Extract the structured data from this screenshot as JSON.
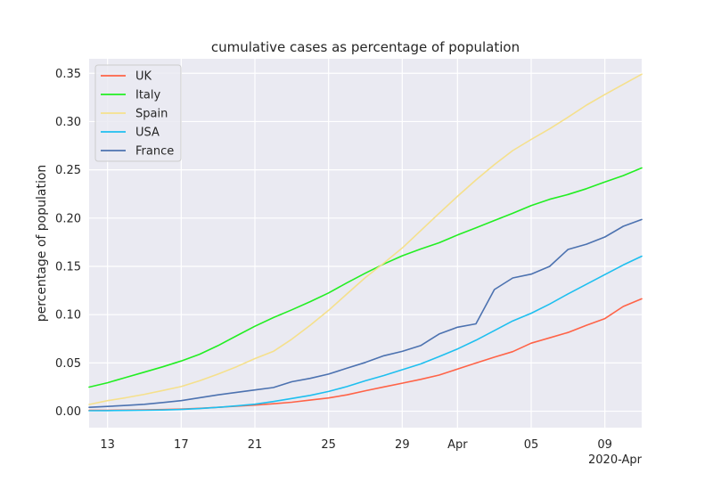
{
  "chart_data": {
    "type": "line",
    "title": "cumulative cases as percentage of population",
    "xlabel": "",
    "ylabel": "percentage of population",
    "x_offset_label": "2020-Apr",
    "x_ticks": [
      "13",
      "17",
      "21",
      "25",
      "29",
      "Apr",
      "05",
      "09"
    ],
    "x_tick_dates": [
      "2020-03-13",
      "2020-03-17",
      "2020-03-21",
      "2020-03-25",
      "2020-03-29",
      "2020-04-01",
      "2020-04-05",
      "2020-04-09"
    ],
    "xlim": [
      "2020-03-12",
      "2020-04-11"
    ],
    "ylim": [
      -0.017,
      0.365
    ],
    "y_ticks": [
      "0.00",
      "0.05",
      "0.10",
      "0.15",
      "0.20",
      "0.25",
      "0.30",
      "0.35"
    ],
    "y_tick_values": [
      0.0,
      0.05,
      0.1,
      0.15,
      0.2,
      0.25,
      0.3,
      0.35
    ],
    "grid": true,
    "background": "#eaeaf2",
    "legend_position": "top-left",
    "x": [
      "2020-03-12",
      "2020-03-13",
      "2020-03-14",
      "2020-03-15",
      "2020-03-16",
      "2020-03-17",
      "2020-03-18",
      "2020-03-19",
      "2020-03-20",
      "2020-03-21",
      "2020-03-22",
      "2020-03-23",
      "2020-03-24",
      "2020-03-25",
      "2020-03-26",
      "2020-03-27",
      "2020-03-28",
      "2020-03-29",
      "2020-03-30",
      "2020-03-31",
      "2020-04-01",
      "2020-04-02",
      "2020-04-03",
      "2020-04-04",
      "2020-04-05",
      "2020-04-06",
      "2020-04-07",
      "2020-04-08",
      "2020-04-09",
      "2020-04-10",
      "2020-04-11"
    ],
    "series": [
      {
        "name": "UK",
        "color": "#ff6347",
        "values": [
          0.0009,
          0.001,
          0.0012,
          0.0014,
          0.0017,
          0.0022,
          0.003,
          0.004,
          0.0052,
          0.0063,
          0.0077,
          0.0093,
          0.0115,
          0.0137,
          0.017,
          0.0212,
          0.0252,
          0.029,
          0.033,
          0.0374,
          0.0436,
          0.0499,
          0.056,
          0.0617,
          0.0705,
          0.076,
          0.0815,
          0.089,
          0.0959,
          0.1085,
          0.1164
        ]
      },
      {
        "name": "Italy",
        "color": "#22ee22",
        "values": [
          0.025,
          0.0295,
          0.035,
          0.0405,
          0.046,
          0.052,
          0.059,
          0.068,
          0.078,
          0.088,
          0.097,
          0.105,
          0.1135,
          0.1225,
          0.133,
          0.143,
          0.1525,
          0.161,
          0.168,
          0.1745,
          0.1825,
          0.19,
          0.1975,
          0.205,
          0.213,
          0.2195,
          0.2245,
          0.2305,
          0.2375,
          0.244,
          0.252
        ]
      },
      {
        "name": "Spain",
        "color": "#f5e08c",
        "values": [
          0.007,
          0.011,
          0.014,
          0.0175,
          0.0215,
          0.0255,
          0.0315,
          0.0385,
          0.046,
          0.0545,
          0.062,
          0.0745,
          0.089,
          0.1045,
          0.1215,
          0.1385,
          0.1535,
          0.169,
          0.187,
          0.205,
          0.2225,
          0.2395,
          0.2555,
          0.27,
          0.2815,
          0.2925,
          0.3045,
          0.317,
          0.328,
          0.3385,
          0.349
        ]
      },
      {
        "name": "USA",
        "color": "#1ebfef",
        "values": [
          0.0005,
          0.0006,
          0.0008,
          0.001,
          0.0013,
          0.0018,
          0.0027,
          0.004,
          0.0055,
          0.0073,
          0.01,
          0.0132,
          0.0164,
          0.0205,
          0.0255,
          0.0315,
          0.037,
          0.043,
          0.049,
          0.0565,
          0.0645,
          0.0735,
          0.0835,
          0.0935,
          0.1015,
          0.111,
          0.1215,
          0.1315,
          0.1415,
          0.1515,
          0.1605
        ]
      },
      {
        "name": "France",
        "color": "#4c72b0",
        "values": [
          0.004,
          0.005,
          0.006,
          0.0072,
          0.009,
          0.011,
          0.014,
          0.017,
          0.0195,
          0.022,
          0.0245,
          0.0305,
          0.034,
          0.0385,
          0.0445,
          0.0505,
          0.0575,
          0.062,
          0.068,
          0.08,
          0.087,
          0.0905,
          0.126,
          0.138,
          0.142,
          0.15,
          0.1675,
          0.173,
          0.1805,
          0.1915,
          0.1985
        ]
      }
    ]
  }
}
